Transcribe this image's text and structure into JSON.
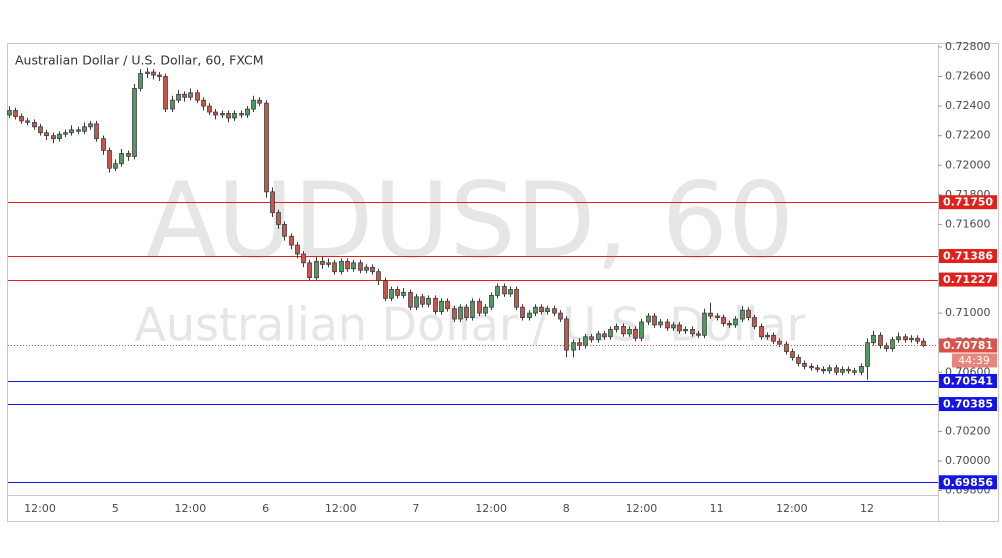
{
  "chart_data": {
    "type": "candlestick",
    "title": "Australian Dollar / U.S. Dollar, 60, FXCM",
    "watermark": {
      "symbol": "AUDUSD, 60",
      "description": "Australian Dollar / U.S. Dollar"
    },
    "up_color": "#4f9a63",
    "down_color": "#c8554a",
    "ylim": [
      0.6977,
      0.7282
    ],
    "yticks": [
      {
        "value": 0.728,
        "label": "0.72800"
      },
      {
        "value": 0.726,
        "label": "0.72600"
      },
      {
        "value": 0.724,
        "label": "0.72400"
      },
      {
        "value": 0.722,
        "label": "0.72200"
      },
      {
        "value": 0.72,
        "label": "0.72000"
      },
      {
        "value": 0.718,
        "label": "0.71800"
      },
      {
        "value": 0.716,
        "label": "0.71600"
      },
      {
        "value": 0.714,
        "label": "0.71400"
      },
      {
        "value": 0.712,
        "label": "0.71200"
      },
      {
        "value": 0.71,
        "label": "0.71000"
      },
      {
        "value": 0.708,
        "label": "0.70800"
      },
      {
        "value": 0.706,
        "label": "0.70600"
      },
      {
        "value": 0.704,
        "label": "0.70400"
      },
      {
        "value": 0.702,
        "label": "0.70200"
      },
      {
        "value": 0.7,
        "label": "0.70000"
      },
      {
        "value": 0.698,
        "label": "0.69800"
      }
    ],
    "levels": [
      {
        "value": 0.7175,
        "label": "0.71750",
        "color": "#e0201c"
      },
      {
        "value": 0.71386,
        "label": "0.71386",
        "color": "#e0201c"
      },
      {
        "value": 0.71227,
        "label": "0.71227",
        "color": "#e0201c"
      },
      {
        "value": 0.70541,
        "label": "0.70541",
        "color": "#1414e6"
      },
      {
        "value": 0.70385,
        "label": "0.70385",
        "color": "#1414e6"
      },
      {
        "value": 0.69856,
        "label": "0.69856",
        "color": "#1414e6"
      }
    ],
    "last_price": {
      "value": 0.70781,
      "label": "0.70781",
      "color": "#d9534a"
    },
    "countdown": "44:39",
    "categories": [
      null,
      null,
      null,
      null,
      null,
      "12:00",
      null,
      null,
      null,
      null,
      null,
      null,
      null,
      null,
      null,
      null,
      null,
      "5",
      null,
      null,
      null,
      null,
      null,
      null,
      null,
      null,
      null,
      null,
      null,
      "12:00",
      null,
      null,
      null,
      null,
      null,
      null,
      null,
      null,
      null,
      null,
      null,
      "6",
      null,
      null,
      null,
      null,
      null,
      null,
      null,
      null,
      null,
      null,
      null,
      "12:00",
      null,
      null,
      null,
      null,
      null,
      null,
      null,
      null,
      null,
      null,
      null,
      "7",
      null,
      null,
      null,
      null,
      null,
      null,
      null,
      null,
      null,
      null,
      null,
      "12:00",
      null,
      null,
      null,
      null,
      null,
      null,
      null,
      null,
      null,
      null,
      null,
      "8",
      null,
      null,
      null,
      null,
      null,
      null,
      null,
      null,
      null,
      null,
      null,
      "12:00",
      null,
      null,
      null,
      null,
      null,
      null,
      null,
      null,
      null,
      null,
      null,
      "11",
      null,
      null,
      null,
      null,
      null,
      null,
      null,
      null,
      null,
      null,
      null,
      "12:00",
      null,
      null,
      null,
      null,
      null,
      null,
      null,
      null,
      null,
      null,
      null,
      "12",
      null,
      null,
      null,
      null,
      null,
      null,
      null,
      null,
      null
    ],
    "open": [
      0.7234,
      0.7237,
      0.7233,
      0.723,
      0.7229,
      0.7226,
      0.7222,
      0.722,
      0.7218,
      0.7221,
      0.7222,
      0.7224,
      0.7223,
      0.7226,
      0.7228,
      0.7218,
      0.721,
      0.7198,
      0.7201,
      0.7208,
      0.7206,
      0.7252,
      0.7262,
      0.7263,
      0.7261,
      0.726,
      0.7238,
      0.7244,
      0.7248,
      0.7246,
      0.7249,
      0.7244,
      0.724,
      0.7236,
      0.7234,
      0.7235,
      0.7232,
      0.7235,
      0.7234,
      0.7238,
      0.7244,
      0.7242,
      0.7182,
      0.7168,
      0.716,
      0.7152,
      0.7146,
      0.714,
      0.7134,
      0.7124,
      0.7135,
      0.7133,
      0.7134,
      0.7128,
      0.7135,
      0.713,
      0.7134,
      0.7129,
      0.7131,
      0.7128,
      0.7122,
      0.711,
      0.7116,
      0.7112,
      0.7114,
      0.7104,
      0.7111,
      0.7106,
      0.711,
      0.7101,
      0.7108,
      0.7103,
      0.7096,
      0.7104,
      0.7097,
      0.7108,
      0.71,
      0.7104,
      0.7112,
      0.7118,
      0.7113,
      0.7116,
      0.7104,
      0.7097,
      0.71,
      0.7104,
      0.7101,
      0.7103,
      0.71,
      0.7096,
      0.7075,
      0.708,
      0.7078,
      0.7084,
      0.7082,
      0.7086,
      0.7084,
      0.7089,
      0.7091,
      0.7086,
      0.7089,
      0.7083,
      0.7094,
      0.7098,
      0.7092,
      0.7094,
      0.709,
      0.7092,
      0.7088,
      0.7089,
      0.7086,
      0.7085,
      0.71,
      0.7098,
      0.7097,
      0.7093,
      0.7092,
      0.7096,
      0.7102,
      0.7097,
      0.7091,
      0.7084,
      0.7085,
      0.7081,
      0.7079,
      0.7074,
      0.707,
      0.7066,
      0.7064,
      0.7063,
      0.7062,
      0.7061,
      0.7063,
      0.706,
      0.7062,
      0.7061,
      0.706,
      0.7064,
      0.708,
      0.7085,
      0.7078,
      0.7076,
      0.7082,
      0.7084,
      0.7082,
      0.7083,
      0.7081
    ],
    "high": [
      0.724,
      0.7239,
      0.7235,
      0.7232,
      0.7231,
      0.7228,
      0.7224,
      0.7222,
      0.7223,
      0.7224,
      0.7227,
      0.7226,
      0.7229,
      0.723,
      0.723,
      0.722,
      0.7212,
      0.7204,
      0.7211,
      0.721,
      0.7255,
      0.7265,
      0.7266,
      0.7265,
      0.7263,
      0.7262,
      0.7247,
      0.7251,
      0.725,
      0.7252,
      0.7251,
      0.7246,
      0.7242,
      0.7238,
      0.7237,
      0.7237,
      0.7237,
      0.7237,
      0.724,
      0.7247,
      0.7246,
      0.7244,
      0.7185,
      0.717,
      0.7162,
      0.7154,
      0.7148,
      0.7142,
      0.7136,
      0.7138,
      0.7138,
      0.7137,
      0.7136,
      0.7137,
      0.7137,
      0.7136,
      0.7136,
      0.7133,
      0.7133,
      0.713,
      0.7124,
      0.7118,
      0.7118,
      0.7117,
      0.7116,
      0.7113,
      0.7113,
      0.7112,
      0.7112,
      0.711,
      0.711,
      0.7105,
      0.7106,
      0.7106,
      0.711,
      0.711,
      0.7106,
      0.7114,
      0.712,
      0.712,
      0.7118,
      0.7118,
      0.7106,
      0.7102,
      0.7106,
      0.7106,
      0.7105,
      0.7105,
      0.7102,
      0.7098,
      0.7082,
      0.7083,
      0.7086,
      0.7086,
      0.7088,
      0.7088,
      0.7091,
      0.7093,
      0.7093,
      0.7091,
      0.7091,
      0.7096,
      0.71,
      0.71,
      0.7096,
      0.7096,
      0.7094,
      0.7094,
      0.7091,
      0.7091,
      0.7088,
      0.7103,
      0.7107,
      0.71,
      0.7099,
      0.7095,
      0.7098,
      0.7105,
      0.7104,
      0.7099,
      0.7093,
      0.7087,
      0.7087,
      0.7083,
      0.7081,
      0.7076,
      0.7072,
      0.7068,
      0.7066,
      0.7065,
      0.7064,
      0.7065,
      0.7065,
      0.7064,
      0.7064,
      0.7063,
      0.7066,
      0.7083,
      0.7088,
      0.7087,
      0.708,
      0.7084,
      0.7087,
      0.7086,
      0.7085,
      0.7085,
      0.7083
    ],
    "low": [
      0.7232,
      0.7231,
      0.7228,
      0.7227,
      0.7224,
      0.722,
      0.7217,
      0.7215,
      0.7216,
      0.7219,
      0.722,
      0.7221,
      0.7221,
      0.7224,
      0.7216,
      0.7207,
      0.7195,
      0.7196,
      0.7199,
      0.7203,
      0.7204,
      0.725,
      0.7259,
      0.7258,
      0.7257,
      0.7236,
      0.7236,
      0.7242,
      0.7243,
      0.7244,
      0.7242,
      0.7237,
      0.7234,
      0.7231,
      0.7232,
      0.7229,
      0.723,
      0.7232,
      0.7232,
      0.7236,
      0.724,
      0.7178,
      0.7165,
      0.7157,
      0.7149,
      0.7143,
      0.7137,
      0.7131,
      0.7122,
      0.7122,
      0.713,
      0.7131,
      0.7126,
      0.7126,
      0.7128,
      0.7128,
      0.7127,
      0.7127,
      0.7126,
      0.7119,
      0.7108,
      0.7108,
      0.711,
      0.711,
      0.7102,
      0.7102,
      0.7104,
      0.7104,
      0.7099,
      0.7099,
      0.7101,
      0.7094,
      0.7094,
      0.7095,
      0.7095,
      0.7098,
      0.7098,
      0.7102,
      0.711,
      0.7111,
      0.7111,
      0.7102,
      0.7095,
      0.7095,
      0.7098,
      0.7099,
      0.7099,
      0.7098,
      0.7094,
      0.707,
      0.707,
      0.7075,
      0.7076,
      0.708,
      0.708,
      0.7082,
      0.7082,
      0.7087,
      0.7084,
      0.7084,
      0.7081,
      0.7081,
      0.7092,
      0.709,
      0.709,
      0.7088,
      0.7088,
      0.7086,
      0.7086,
      0.7084,
      0.7083,
      0.7083,
      0.7096,
      0.7095,
      0.7091,
      0.709,
      0.709,
      0.7094,
      0.7095,
      0.7089,
      0.7082,
      0.7082,
      0.7079,
      0.7077,
      0.7072,
      0.7068,
      0.7064,
      0.7062,
      0.7061,
      0.706,
      0.7059,
      0.7059,
      0.7058,
      0.7058,
      0.7059,
      0.7058,
      0.7058,
      0.7055,
      0.7078,
      0.7076,
      0.7074,
      0.7074,
      0.708,
      0.708,
      0.708,
      0.7079,
      0.7077
    ],
    "close": [
      0.7237,
      0.7233,
      0.723,
      0.7229,
      0.7226,
      0.7222,
      0.722,
      0.7218,
      0.7221,
      0.7222,
      0.7224,
      0.7223,
      0.7226,
      0.7228,
      0.7218,
      0.721,
      0.7198,
      0.7201,
      0.7208,
      0.7206,
      0.7252,
      0.7262,
      0.7263,
      0.7261,
      0.726,
      0.7238,
      0.7244,
      0.7248,
      0.7246,
      0.7249,
      0.7244,
      0.724,
      0.7236,
      0.7234,
      0.7235,
      0.7232,
      0.7235,
      0.7234,
      0.7238,
      0.7244,
      0.7242,
      0.7182,
      0.7168,
      0.716,
      0.7152,
      0.7146,
      0.714,
      0.7134,
      0.7124,
      0.7135,
      0.7133,
      0.7134,
      0.7128,
      0.7135,
      0.713,
      0.7134,
      0.7129,
      0.7131,
      0.7128,
      0.7122,
      0.711,
      0.7116,
      0.7112,
      0.7114,
      0.7104,
      0.7111,
      0.7106,
      0.711,
      0.7101,
      0.7108,
      0.7103,
      0.7096,
      0.7104,
      0.7097,
      0.7108,
      0.71,
      0.7104,
      0.7112,
      0.7118,
      0.7113,
      0.7116,
      0.7104,
      0.7097,
      0.71,
      0.7104,
      0.7101,
      0.7103,
      0.71,
      0.7096,
      0.7075,
      0.708,
      0.7078,
      0.7084,
      0.7082,
      0.7086,
      0.7084,
      0.7089,
      0.7091,
      0.7086,
      0.7089,
      0.7083,
      0.7094,
      0.7098,
      0.7092,
      0.7094,
      0.709,
      0.7092,
      0.7088,
      0.7089,
      0.7086,
      0.7085,
      0.71,
      0.7098,
      0.7097,
      0.7093,
      0.7092,
      0.7096,
      0.7102,
      0.7097,
      0.7091,
      0.7084,
      0.7085,
      0.7081,
      0.7079,
      0.7074,
      0.707,
      0.7066,
      0.7064,
      0.7063,
      0.7062,
      0.7061,
      0.7063,
      0.706,
      0.7062,
      0.7061,
      0.706,
      0.7064,
      0.708,
      0.7085,
      0.7078,
      0.7076,
      0.7082,
      0.7084,
      0.7082,
      0.7083,
      0.7081,
      0.70781
    ]
  }
}
